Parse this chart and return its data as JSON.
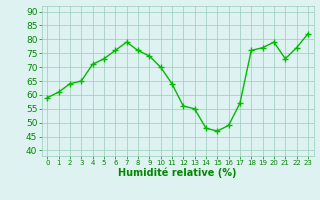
{
  "x": [
    0,
    1,
    2,
    3,
    4,
    5,
    6,
    7,
    8,
    9,
    10,
    11,
    12,
    13,
    14,
    15,
    16,
    17,
    18,
    19,
    20,
    21,
    22,
    23
  ],
  "y": [
    59,
    61,
    64,
    65,
    71,
    73,
    76,
    79,
    76,
    74,
    70,
    64,
    56,
    55,
    48,
    47,
    49,
    57,
    76,
    77,
    79,
    73,
    77,
    82
  ],
  "line_color": "#00bb00",
  "marker": "+",
  "marker_size": 4,
  "marker_linewidth": 1.0,
  "line_width": 1.0,
  "bg_color": "#dff2f2",
  "grid_color": "#99ccbb",
  "xlabel": "Humidité relative (%)",
  "xlabel_color": "#008800",
  "tick_color": "#008800",
  "ylabel_ticks": [
    40,
    45,
    50,
    55,
    60,
    65,
    70,
    75,
    80,
    85,
    90
  ],
  "ylim": [
    38,
    92
  ],
  "xlim": [
    -0.5,
    23.5
  ],
  "ytick_fontsize": 6.5,
  "xtick_fontsize": 5.0,
  "xlabel_fontsize": 7.0
}
